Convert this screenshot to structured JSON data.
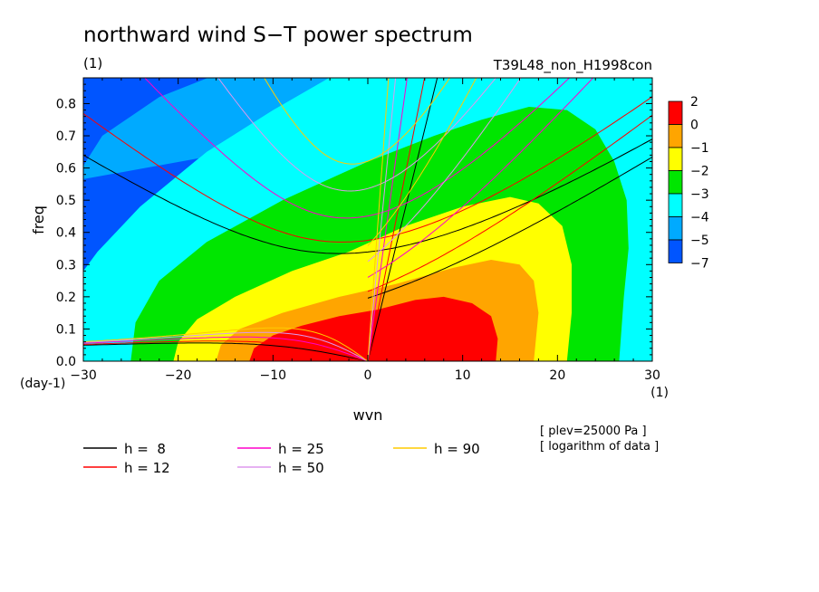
{
  "chart_data": {
    "type": "heatmap",
    "title": "northward wind S−T power spectrum",
    "subtitle_left": "(1)",
    "subtitle_right": "T39L48_non_H1998con",
    "xlabel": "wvn",
    "ylabel": "freq",
    "x_unit": "(1)",
    "y_unit": "(day-1)",
    "xlim": [
      -30,
      30
    ],
    "ylim": [
      0,
      0.88
    ],
    "xticks": [
      "−30",
      "−20",
      "−10",
      "0",
      "10",
      "20",
      "30"
    ],
    "yticks": [
      "0.0",
      "0.1",
      "0.2",
      "0.3",
      "0.4",
      "0.5",
      "0.6",
      "0.7",
      "0.8"
    ],
    "notes": [
      "[ plev=25000 Pa ]",
      "[ logarithm of data ]"
    ],
    "colorbar": {
      "labels": [
        "2",
        "0",
        "−1",
        "−2",
        "−3",
        "−4",
        "−5",
        "−7"
      ],
      "colors": [
        "#ff0000",
        "#ffa500",
        "#ffff00",
        "#00e600",
        "#00ffff",
        "#00aaff",
        "#0055ff"
      ]
    },
    "contour_levels_approx": [
      {
        "level": 0,
        "x_range_at_f0": [
          -12.5,
          13.5
        ],
        "max_freq": 0.2,
        "color": "#ff0000"
      },
      {
        "level": -1,
        "x_range_at_f0": [
          -16,
          17.5
        ],
        "max_freq": 0.32,
        "color": "#ffa500"
      },
      {
        "level": -2,
        "x_range_at_f0": [
          -20.5,
          21
        ],
        "max_freq": 0.51,
        "color": "#ffff00"
      },
      {
        "level": -3,
        "x_range_at_f0": [
          -25,
          26.5
        ],
        "max_freq": 0.79,
        "color": "#00e600"
      },
      {
        "level": -4,
        "x_range_at_f0": [
          -30,
          30
        ],
        "max_freq": 0.88,
        "color": "#00ffff"
      }
    ],
    "dispersion_curves": [
      {
        "h": 8,
        "color": "#000000",
        "label": "h =  8",
        "rossby_gravity_min_freq": 0.335
      },
      {
        "h": 12,
        "color": "#ff0000",
        "label": "h = 12",
        "rossby_gravity_min_freq": 0.37
      },
      {
        "h": 25,
        "color": "#ff00cc",
        "label": "h = 25",
        "rossby_gravity_min_freq": 0.445
      },
      {
        "h": 50,
        "color": "#dd99ee",
        "label": "h = 50",
        "rossby_gravity_min_freq": 0.53
      },
      {
        "h": 90,
        "color": "#ffcc00",
        "label": "h = 90",
        "rossby_gravity_min_freq": 0.61
      }
    ]
  }
}
